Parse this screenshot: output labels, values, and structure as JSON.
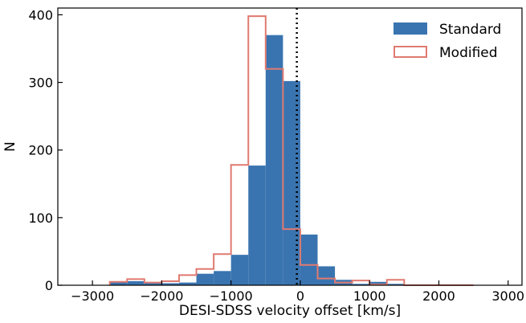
{
  "chart_data": {
    "type": "bar",
    "title": "",
    "xlabel": "DESI-SDSS velocity offset [km/s]",
    "ylabel": "N",
    "xlim": [
      -3500,
      3200
    ],
    "ylim": [
      0,
      410
    ],
    "bin_width": 250,
    "bin_edges": [
      -2750,
      -2500,
      -2250,
      -2000,
      -1750,
      -1500,
      -1250,
      -1000,
      -750,
      -500,
      -250,
      0,
      250,
      500,
      750,
      1000,
      1250,
      1500,
      1750,
      2000,
      2250,
      2500
    ],
    "xticks": [
      -3000,
      -2000,
      -1000,
      0,
      1000,
      2000,
      3000
    ],
    "xtick_labels": [
      "−3000",
      "−2000",
      "−1000",
      "0",
      "1000",
      "2000",
      "3000"
    ],
    "yticks": [
      0,
      100,
      200,
      300,
      400
    ],
    "ytick_labels": [
      "0",
      "100",
      "200",
      "300",
      "400"
    ],
    "series": [
      {
        "name": "Standard",
        "style": "filled",
        "color": "#3a74b0",
        "values": [
          5,
          6,
          3,
          3,
          4,
          17,
          21,
          45,
          177,
          370,
          302,
          75,
          28,
          8,
          2,
          5,
          2,
          1,
          0,
          0,
          0
        ]
      },
      {
        "name": "Modified",
        "style": "step",
        "color": "#e07a70",
        "values": [
          5,
          9,
          4,
          6,
          15,
          24,
          46,
          178,
          398,
          320,
          83,
          30,
          10,
          4,
          7,
          1,
          8,
          0,
          0,
          0,
          0
        ]
      }
    ],
    "reference_line": {
      "x": -50,
      "style": "dotted",
      "color": "#000000"
    },
    "grid": false,
    "legend": "top-right"
  }
}
